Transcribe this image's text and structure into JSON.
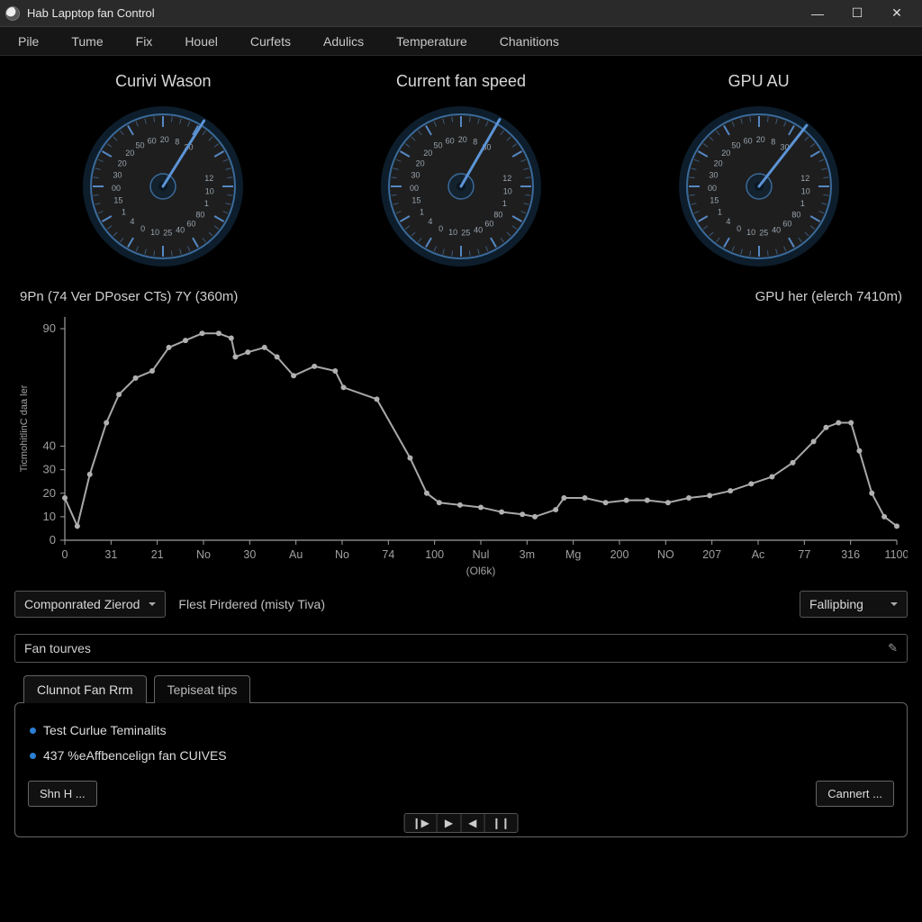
{
  "window": {
    "title": "Hab Lapptop fan Control",
    "buttons": {
      "min": "—",
      "max": "☐",
      "close": "✕"
    }
  },
  "menu": [
    "Pile",
    "Tume",
    "Fix",
    "Houel",
    "Curfets",
    "Adulics",
    "Temperature",
    "Chanitions"
  ],
  "gauges": {
    "items": [
      {
        "title": "Curivi Wason",
        "needle_angle": 32
      },
      {
        "title": "Current fan speed",
        "needle_angle": 30
      },
      {
        "title": "GPU AU",
        "needle_angle": 38
      }
    ],
    "face_color": "#1e1e1e",
    "rim_color": "#3a6a9a",
    "rim_glow": "#1a3a56",
    "needle_color": "#5c94d6",
    "hub_color": "#14222e",
    "tick_color": "#5c94d6",
    "label_color": "#98a3ad",
    "tick_labels": [
      "20",
      "50",
      "60",
      "20",
      "8",
      "30",
      "",
      "",
      "12",
      "10",
      "1",
      "80",
      "60",
      "40",
      "25",
      "10",
      "0",
      "4",
      "1",
      "15",
      "00",
      "30",
      "20"
    ]
  },
  "captions": {
    "left": "9Pn (74 Ver DPoser CTs) 7Y (360m)",
    "right": "GPU her (elerch 7410m)"
  },
  "chart": {
    "type": "line",
    "background_color": "#000000",
    "axis_color": "#a0a0a0",
    "grid_color": "#222222",
    "line_color": "#a8a8a8",
    "line_width": 2,
    "marker_color": "#b0b0b0",
    "marker_size": 3,
    "ylabel": "TicmohitlinC daa ler",
    "label_fontsize": 11,
    "ylim": [
      0,
      95
    ],
    "yticks": [
      0,
      20,
      10,
      30,
      40,
      90
    ],
    "ytick_labels": [
      "0",
      "20",
      "10",
      "30",
      "40",
      "90"
    ],
    "xlim": [
      0,
      20
    ],
    "xtick_labels": [
      "0",
      "31",
      "21",
      "No",
      "30",
      "Au",
      "No",
      "74",
      "100",
      "Nul",
      "3m",
      "Mg",
      "200",
      "NO",
      "207",
      "Ac",
      "77",
      "316",
      "1100"
    ],
    "xlabel_sub": "(Ol6k)",
    "points": [
      [
        0.0,
        18
      ],
      [
        0.3,
        6
      ],
      [
        0.6,
        28
      ],
      [
        1.0,
        50
      ],
      [
        1.3,
        62
      ],
      [
        1.7,
        69
      ],
      [
        2.1,
        72
      ],
      [
        2.5,
        82
      ],
      [
        2.9,
        85
      ],
      [
        3.3,
        88
      ],
      [
        3.7,
        88
      ],
      [
        4.0,
        86
      ],
      [
        4.1,
        78
      ],
      [
        4.4,
        80
      ],
      [
        4.8,
        82
      ],
      [
        5.1,
        78
      ],
      [
        5.5,
        70
      ],
      [
        6.0,
        74
      ],
      [
        6.5,
        72
      ],
      [
        6.7,
        65
      ],
      [
        7.5,
        60
      ],
      [
        8.3,
        35
      ],
      [
        8.7,
        20
      ],
      [
        9.0,
        16
      ],
      [
        9.5,
        15
      ],
      [
        10.0,
        14
      ],
      [
        10.5,
        12
      ],
      [
        11.0,
        11
      ],
      [
        11.3,
        10
      ],
      [
        11.8,
        13
      ],
      [
        12.0,
        18
      ],
      [
        12.5,
        18
      ],
      [
        13.0,
        16
      ],
      [
        13.5,
        17
      ],
      [
        14.0,
        17
      ],
      [
        14.5,
        16
      ],
      [
        15.0,
        18
      ],
      [
        15.5,
        19
      ],
      [
        16.0,
        21
      ],
      [
        16.5,
        24
      ],
      [
        17.0,
        27
      ],
      [
        17.5,
        33
      ],
      [
        18.0,
        42
      ],
      [
        18.3,
        48
      ],
      [
        18.6,
        50
      ],
      [
        18.9,
        50
      ],
      [
        19.1,
        38
      ],
      [
        19.4,
        20
      ],
      [
        19.7,
        10
      ],
      [
        20.0,
        6
      ]
    ]
  },
  "controls": {
    "profile_dropdown": "Componrated Zierod",
    "status_label": "Flest Pirdered (misty Tiva)",
    "mode_dropdown": "Fallipbing"
  },
  "section": {
    "header": "Fan tourves",
    "edit_icon": "✎"
  },
  "tabs": {
    "items": [
      "Clunnot Fan Rrm",
      "Tepiseat tips"
    ],
    "active": 0
  },
  "panel": {
    "rows": [
      "Test Curlue Teminalits",
      "437 %eAffbencelign fan CUIVES"
    ],
    "btn_left": "Shn H ...",
    "btn_right": "Cannert ..."
  },
  "media": [
    "❙▶",
    "▶",
    "◀",
    "❙❙"
  ]
}
